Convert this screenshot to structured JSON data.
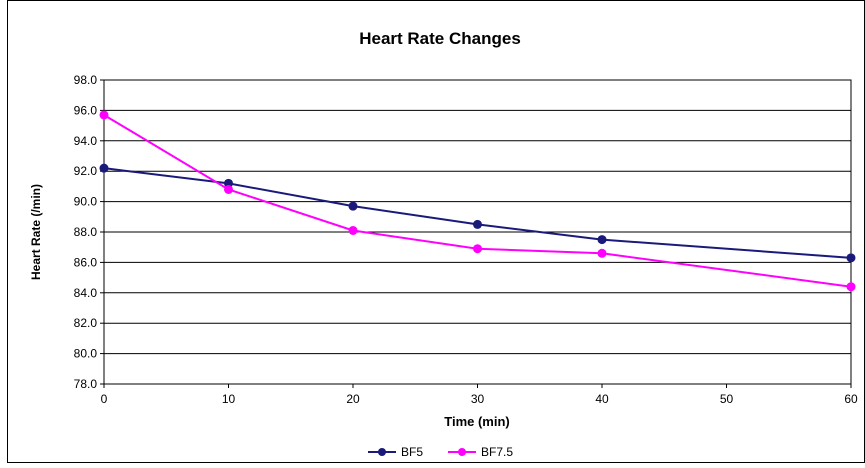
{
  "chart_data": {
    "type": "line",
    "title": "Heart Rate Changes",
    "xlabel": "Time (min)",
    "ylabel": "Heart Rate (/min)",
    "x": [
      0,
      10,
      20,
      30,
      40,
      60
    ],
    "xlim": [
      0,
      60
    ],
    "xticks": [
      0,
      10,
      20,
      30,
      40,
      50,
      60
    ],
    "ylim": [
      78,
      98
    ],
    "yticks": [
      "78.0",
      "80.0",
      "82.0",
      "84.0",
      "86.0",
      "88.0",
      "90.0",
      "92.0",
      "94.0",
      "96.0",
      "98.0"
    ],
    "grid": "horizontal",
    "legend": "bottom",
    "series": [
      {
        "name": "BF5",
        "color": "#1a1a7a",
        "values": [
          92.2,
          91.2,
          89.7,
          88.5,
          87.5,
          86.3
        ]
      },
      {
        "name": "BF7.5",
        "color": "#ff00ff",
        "values": [
          95.7,
          90.8,
          88.1,
          86.9,
          86.6,
          84.4
        ]
      }
    ]
  }
}
